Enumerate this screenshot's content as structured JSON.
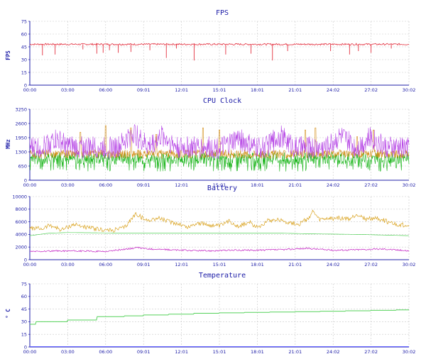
{
  "x_ticks": [
    "00:00",
    "03:00",
    "06:00",
    "09:01",
    "12:01",
    "15:01",
    "18:01",
    "21:01",
    "24:02",
    "27:02",
    "30:02"
  ],
  "colors": {
    "axis": "#2222aa",
    "grid": "#c8c8c8",
    "text": "#1a1aa6",
    "fps": "#e3303f",
    "cpu_big": "#b84be6",
    "cpu_mid": "#d4901a",
    "cpu_little": "#12b212",
    "battery_power": "#d9a21e",
    "battery_current": "#c21fc2",
    "battery_level": "#55d25a",
    "temp_line": "#55d25a",
    "temp_zero": "#5b5bff"
  },
  "chart_data": [
    {
      "type": "line",
      "title": "FPS",
      "ylabel": "FPS",
      "ylim": [
        0,
        75
      ],
      "y_ticks": [
        0,
        15,
        30,
        45,
        60,
        75
      ],
      "x_ticks": [
        "00:00",
        "03:00",
        "06:00",
        "09:01",
        "12:01",
        "15:01",
        "18:01",
        "21:01",
        "24:02",
        "27:02",
        "30:02"
      ],
      "grid": true,
      "series": [
        {
          "color": "fps",
          "baseline": 48,
          "noise": 1,
          "dips": [
            [
              1.0,
              35
            ],
            [
              2.0,
              36
            ],
            [
              4.2,
              42
            ],
            [
              5.3,
              37
            ],
            [
              5.8,
              38
            ],
            [
              6.3,
              41
            ],
            [
              7.0,
              38
            ],
            [
              8.0,
              39
            ],
            [
              9.5,
              41
            ],
            [
              10.8,
              32
            ],
            [
              11.6,
              43
            ],
            [
              13.0,
              29
            ],
            [
              15.5,
              36
            ],
            [
              17.5,
              37
            ],
            [
              19.2,
              29
            ],
            [
              20.4,
              40
            ],
            [
              23.8,
              40
            ],
            [
              25.3,
              36
            ],
            [
              26.0,
              40
            ],
            [
              27.0,
              38
            ],
            [
              28.6,
              43
            ]
          ]
        }
      ]
    },
    {
      "type": "line",
      "title": "CPU Clock",
      "ylabel": "MHz",
      "ylim": [
        0,
        3250
      ],
      "y_ticks": [
        0,
        650,
        1300,
        1950,
        2600,
        3250
      ],
      "y_tick_labels": [
        "0",
        "650",
        "1300",
        "1950",
        "2600",
        "3250"
      ],
      "x_ticks": [
        "00:00",
        "03:00",
        "06:00",
        "09:01",
        "12:01",
        "15:01",
        "18:01",
        "21:01",
        "24:02",
        "27:02",
        "30:02"
      ],
      "grid": true,
      "series": [
        {
          "color": "cpu_little",
          "baseline": 1000,
          "noise": 280,
          "floor": 400
        },
        {
          "color": "cpu_mid",
          "baseline": 1200,
          "noise": 200,
          "spikes": [
            [
              4.0,
              2200
            ],
            [
              6.0,
              2500
            ],
            [
              8.0,
              2400
            ],
            [
              10.0,
              2100
            ],
            [
              13.7,
              2400
            ],
            [
              15.0,
              2300
            ],
            [
              21.8,
              2300
            ],
            [
              22.6,
              2400
            ],
            [
              25.9,
              2000
            ],
            [
              27.2,
              2300
            ]
          ]
        },
        {
          "color": "cpu_big",
          "baseline": 1500,
          "noise": 520,
          "peaks": [
            [
              2.0,
              2100
            ],
            [
              8.2,
              2600
            ],
            [
              10.5,
              2400
            ],
            [
              16.5,
              2200
            ],
            [
              19.8,
              2400
            ],
            [
              24.6,
              2400
            ],
            [
              27.0,
              2300
            ]
          ]
        }
      ]
    },
    {
      "type": "line",
      "title": "Battery",
      "ylim": [
        0,
        10000
      ],
      "y_ticks": [
        0,
        2000,
        4000,
        6000,
        8000,
        10000
      ],
      "x_ticks": [
        "00:00",
        "03:00",
        "06:00",
        "09:01",
        "12:01",
        "15:01",
        "18:01",
        "21:01",
        "24:02",
        "27:02",
        "30:02"
      ],
      "grid": true,
      "series": [
        {
          "color": "battery_power",
          "points": [
            [
              0,
              5000
            ],
            [
              1,
              4900
            ],
            [
              1.6,
              5500
            ],
            [
              2.5,
              4700
            ],
            [
              3.5,
              5600
            ],
            [
              4.5,
              5100
            ],
            [
              5.5,
              4800
            ],
            [
              6.5,
              4600
            ],
            [
              7.5,
              5100
            ],
            [
              8.4,
              7300
            ],
            [
              9.2,
              6200
            ],
            [
              10.2,
              6600
            ],
            [
              11.0,
              6000
            ],
            [
              11.8,
              5700
            ],
            [
              12.5,
              5100
            ],
            [
              13.2,
              5800
            ],
            [
              14.2,
              5500
            ],
            [
              15.0,
              5300
            ],
            [
              15.8,
              6100
            ],
            [
              16.5,
              5300
            ],
            [
              17.4,
              5900
            ],
            [
              18.0,
              5100
            ],
            [
              18.8,
              6200
            ],
            [
              19.6,
              6400
            ],
            [
              20.5,
              5900
            ],
            [
              21.3,
              5600
            ],
            [
              22.1,
              6700
            ],
            [
              22.4,
              7600
            ],
            [
              22.9,
              6300
            ],
            [
              23.6,
              6500
            ],
            [
              24.5,
              6600
            ],
            [
              25.3,
              6400
            ],
            [
              25.9,
              7200
            ],
            [
              26.6,
              6400
            ],
            [
              27.4,
              6600
            ],
            [
              28.2,
              6100
            ],
            [
              29.0,
              5500
            ],
            [
              30.0,
              5500
            ]
          ],
          "noise": 350
        },
        {
          "color": "battery_level",
          "points": [
            [
              0,
              3800
            ],
            [
              1.5,
              4200
            ],
            [
              3,
              4300
            ],
            [
              8,
              4200
            ],
            [
              13,
              4200
            ],
            [
              20,
              4200
            ],
            [
              22,
              4100
            ],
            [
              26,
              4000
            ],
            [
              30,
              3800
            ]
          ],
          "noise": 0
        },
        {
          "color": "battery_current",
          "points": [
            [
              0,
              1300
            ],
            [
              3,
              1400
            ],
            [
              6,
              1300
            ],
            [
              8.5,
              1900
            ],
            [
              9.5,
              1700
            ],
            [
              12,
              1500
            ],
            [
              14,
              1400
            ],
            [
              16,
              1500
            ],
            [
              18,
              1500
            ],
            [
              20,
              1600
            ],
            [
              22,
              1800
            ],
            [
              24,
              1500
            ],
            [
              26,
              1600
            ],
            [
              28,
              1700
            ],
            [
              30,
              1400
            ]
          ],
          "noise": 120
        }
      ]
    },
    {
      "type": "line",
      "title": "Temperature",
      "ylabel": "° C",
      "ylim": [
        0,
        75
      ],
      "y_ticks": [
        0,
        15,
        30,
        45,
        60,
        75
      ],
      "x_ticks": [
        "00:00",
        "03:00",
        "06:00",
        "09:01",
        "12:01",
        "15:01",
        "18:01",
        "21:01",
        "24:02",
        "27:02",
        "30:02"
      ],
      "grid": true,
      "series": [
        {
          "color": "temp_line",
          "step": true,
          "points": [
            [
              0,
              27
            ],
            [
              0.5,
              30
            ],
            [
              3.0,
              32
            ],
            [
              5.3,
              36
            ],
            [
              7.5,
              37
            ],
            [
              9.0,
              38
            ],
            [
              11.0,
              39
            ],
            [
              13.0,
              40
            ],
            [
              15.0,
              40.5
            ],
            [
              17.0,
              41
            ],
            [
              19.0,
              41.5
            ],
            [
              21.0,
              42
            ],
            [
              23.0,
              42.5
            ],
            [
              25.0,
              43
            ],
            [
              27.0,
              43.5
            ],
            [
              29.0,
              44
            ],
            [
              30.0,
              44
            ]
          ]
        },
        {
          "color": "temp_zero",
          "points": [
            [
              0,
              0.4
            ],
            [
              30,
              0.4
            ]
          ]
        }
      ]
    }
  ]
}
